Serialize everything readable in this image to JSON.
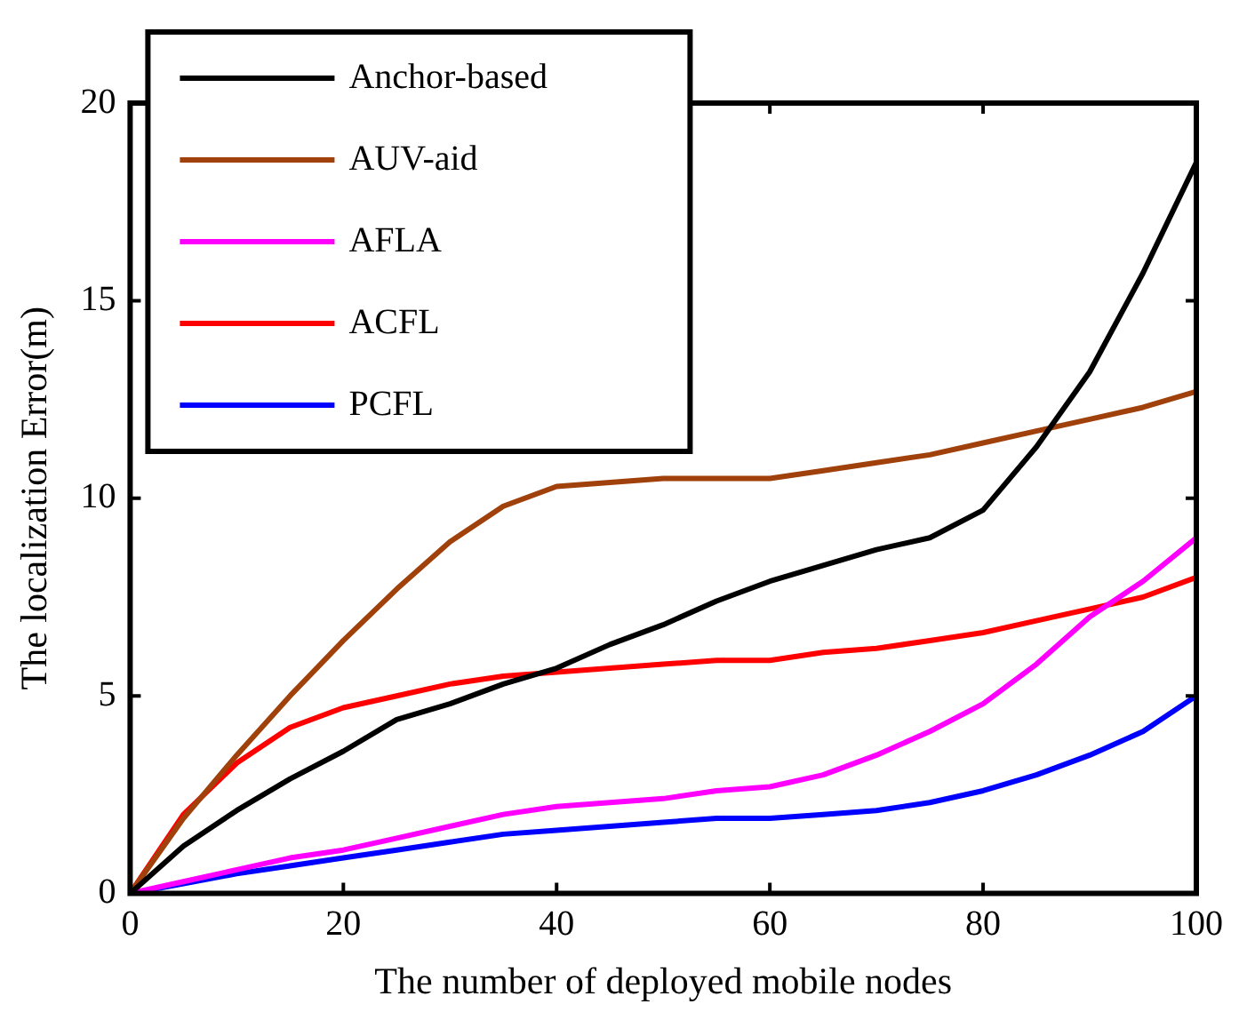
{
  "chart_data": {
    "type": "line",
    "xlabel": "The number of deployed mobile nodes",
    "ylabel": "The localization Error(m)",
    "x": [
      0,
      5,
      10,
      15,
      20,
      25,
      30,
      35,
      40,
      45,
      50,
      55,
      60,
      65,
      70,
      75,
      80,
      85,
      90,
      95,
      100
    ],
    "xlim": [
      0,
      100
    ],
    "xticks": [
      0,
      20,
      40,
      60,
      80,
      100
    ],
    "ylim": [
      0,
      20
    ],
    "yticks": [
      0,
      5,
      10,
      15,
      20
    ],
    "grid": false,
    "legend": "top left",
    "marker": "none",
    "line_style": "solid",
    "series": [
      {
        "name": "Anchor-based",
        "color": "#000000",
        "values": [
          0,
          1.2,
          2.1,
          2.9,
          3.6,
          4.4,
          4.8,
          5.3,
          5.7,
          6.3,
          6.8,
          7.4,
          7.9,
          8.3,
          8.7,
          9.0,
          9.7,
          11.3,
          13.2,
          15.7,
          18.5
        ]
      },
      {
        "name": "AUV-aid",
        "color": "#a0400a",
        "values": [
          0,
          1.9,
          3.5,
          5.0,
          6.4,
          7.7,
          8.9,
          9.8,
          10.3,
          10.4,
          10.5,
          10.5,
          10.5,
          10.7,
          10.9,
          11.1,
          11.4,
          11.7,
          12.0,
          12.3,
          12.7
        ]
      },
      {
        "name": "AFLA",
        "color": "#ff00ff",
        "values": [
          0,
          0.3,
          0.6,
          0.9,
          1.1,
          1.4,
          1.7,
          2.0,
          2.2,
          2.3,
          2.4,
          2.6,
          2.7,
          3.0,
          3.5,
          4.1,
          4.8,
          5.8,
          7.0,
          7.9,
          9.0
        ]
      },
      {
        "name": "ACFL",
        "color": "#ff0000",
        "values": [
          0,
          2.0,
          3.3,
          4.2,
          4.7,
          5.0,
          5.3,
          5.5,
          5.6,
          5.7,
          5.8,
          5.9,
          5.9,
          6.1,
          6.2,
          6.4,
          6.6,
          6.9,
          7.2,
          7.5,
          8.0
        ]
      },
      {
        "name": "PCFL",
        "color": "#0000ff",
        "values": [
          0,
          0.25,
          0.5,
          0.7,
          0.9,
          1.1,
          1.3,
          1.5,
          1.6,
          1.7,
          1.8,
          1.9,
          1.9,
          2.0,
          2.1,
          2.3,
          2.6,
          3.0,
          3.5,
          4.1,
          5.0
        ]
      }
    ]
  }
}
